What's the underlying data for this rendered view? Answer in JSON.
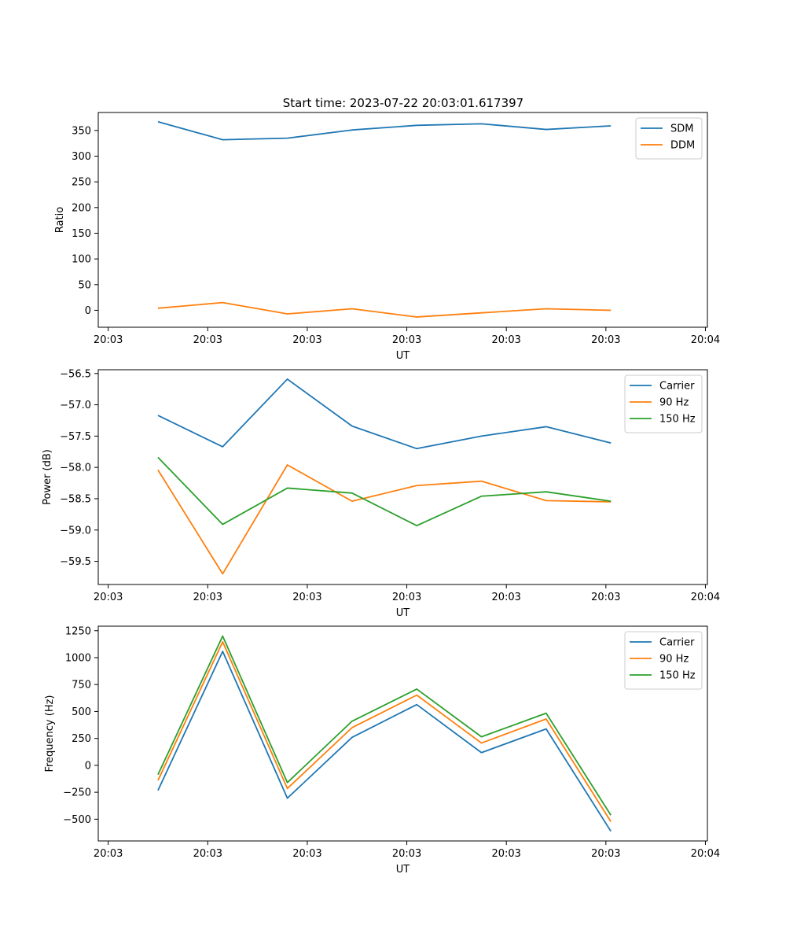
{
  "figure": {
    "title": "Start time: 2023-07-22 20:03:01.617397"
  },
  "chart_data": [
    {
      "type": "line",
      "title": "Start time: 2023-07-22 20:03:01.617397",
      "xlabel": "UT",
      "ylabel": "Ratio",
      "x": [
        0.5,
        1.15,
        1.8,
        2.45,
        3.1,
        3.75,
        4.4,
        5.05
      ],
      "xlim": [
        -0.1,
        6.02
      ],
      "ylim": [
        -33,
        385
      ],
      "xticks": [
        0,
        1,
        2,
        3,
        4,
        5,
        6
      ],
      "xtick_labels": [
        "20:03",
        "20:03",
        "20:03",
        "20:03",
        "20:03",
        "20:03",
        "20:04"
      ],
      "yticks": [
        0,
        50,
        100,
        150,
        200,
        250,
        300,
        350
      ],
      "ytick_labels": [
        "0",
        "50",
        "100",
        "150",
        "200",
        "250",
        "300",
        "350"
      ],
      "legend_position": "top-right",
      "grid": false,
      "series": [
        {
          "name": "SDM",
          "color": "#1f77b4",
          "values": [
            367,
            332,
            335,
            351,
            360,
            363,
            352,
            359
          ]
        },
        {
          "name": "DDM",
          "color": "#ff7f0e",
          "values": [
            4,
            15,
            -7,
            3,
            -13,
            -5,
            3,
            0
          ]
        }
      ]
    },
    {
      "type": "line",
      "title": "",
      "xlabel": "UT",
      "ylabel": "Power (dB)",
      "x": [
        0.5,
        1.15,
        1.8,
        2.45,
        3.1,
        3.75,
        4.4,
        5.05
      ],
      "xlim": [
        -0.1,
        6.02
      ],
      "ylim": [
        -59.87,
        -56.44
      ],
      "xticks": [
        0,
        1,
        2,
        3,
        4,
        5,
        6
      ],
      "xtick_labels": [
        "20:03",
        "20:03",
        "20:03",
        "20:03",
        "20:03",
        "20:03",
        "20:04"
      ],
      "yticks": [
        -59.5,
        -59.0,
        -58.5,
        -58.0,
        -57.5,
        -57.0,
        -56.5
      ],
      "ytick_labels": [
        "−59.5",
        "−59.0",
        "−58.5",
        "−58.0",
        "−57.5",
        "−57.0",
        "−56.5"
      ],
      "legend_position": "top-right",
      "grid": false,
      "series": [
        {
          "name": "Carrier",
          "color": "#1f77b4",
          "values": [
            -57.17,
            -57.67,
            -56.59,
            -57.34,
            -57.7,
            -57.5,
            -57.35,
            -57.61
          ]
        },
        {
          "name": "90 Hz",
          "color": "#ff7f0e",
          "values": [
            -58.04,
            -59.7,
            -57.96,
            -58.54,
            -58.29,
            -58.22,
            -58.53,
            -58.55
          ]
        },
        {
          "name": "150 Hz",
          "color": "#2ca02c",
          "values": [
            -57.84,
            -58.91,
            -58.33,
            -58.41,
            -58.93,
            -58.46,
            -58.39,
            -58.54
          ]
        }
      ]
    },
    {
      "type": "line",
      "title": "",
      "xlabel": "UT",
      "ylabel": "Frequency (Hz)",
      "x": [
        0.5,
        1.15,
        1.8,
        2.45,
        3.1,
        3.75,
        4.4,
        5.05
      ],
      "xlim": [
        -0.1,
        6.02
      ],
      "ylim": [
        -702,
        1292
      ],
      "xticks": [
        0,
        1,
        2,
        3,
        4,
        5,
        6
      ],
      "xtick_labels": [
        "20:03",
        "20:03",
        "20:03",
        "20:03",
        "20:03",
        "20:03",
        "20:04"
      ],
      "yticks": [
        -500,
        -250,
        0,
        250,
        500,
        750,
        1000,
        1250
      ],
      "ytick_labels": [
        "−500",
        "−250",
        "0",
        "250",
        "500",
        "750",
        "1000",
        "1250"
      ],
      "legend_position": "top-right",
      "grid": false,
      "series": [
        {
          "name": "Carrier",
          "color": "#1f77b4",
          "values": [
            -233,
            1058,
            -305,
            260,
            564,
            118,
            338,
            -612
          ]
        },
        {
          "name": "90 Hz",
          "color": "#ff7f0e",
          "values": [
            -140,
            1147,
            -215,
            350,
            652,
            207,
            430,
            -523
          ]
        },
        {
          "name": "150 Hz",
          "color": "#2ca02c",
          "values": [
            -87,
            1200,
            -160,
            410,
            708,
            265,
            484,
            -463
          ]
        }
      ]
    }
  ]
}
